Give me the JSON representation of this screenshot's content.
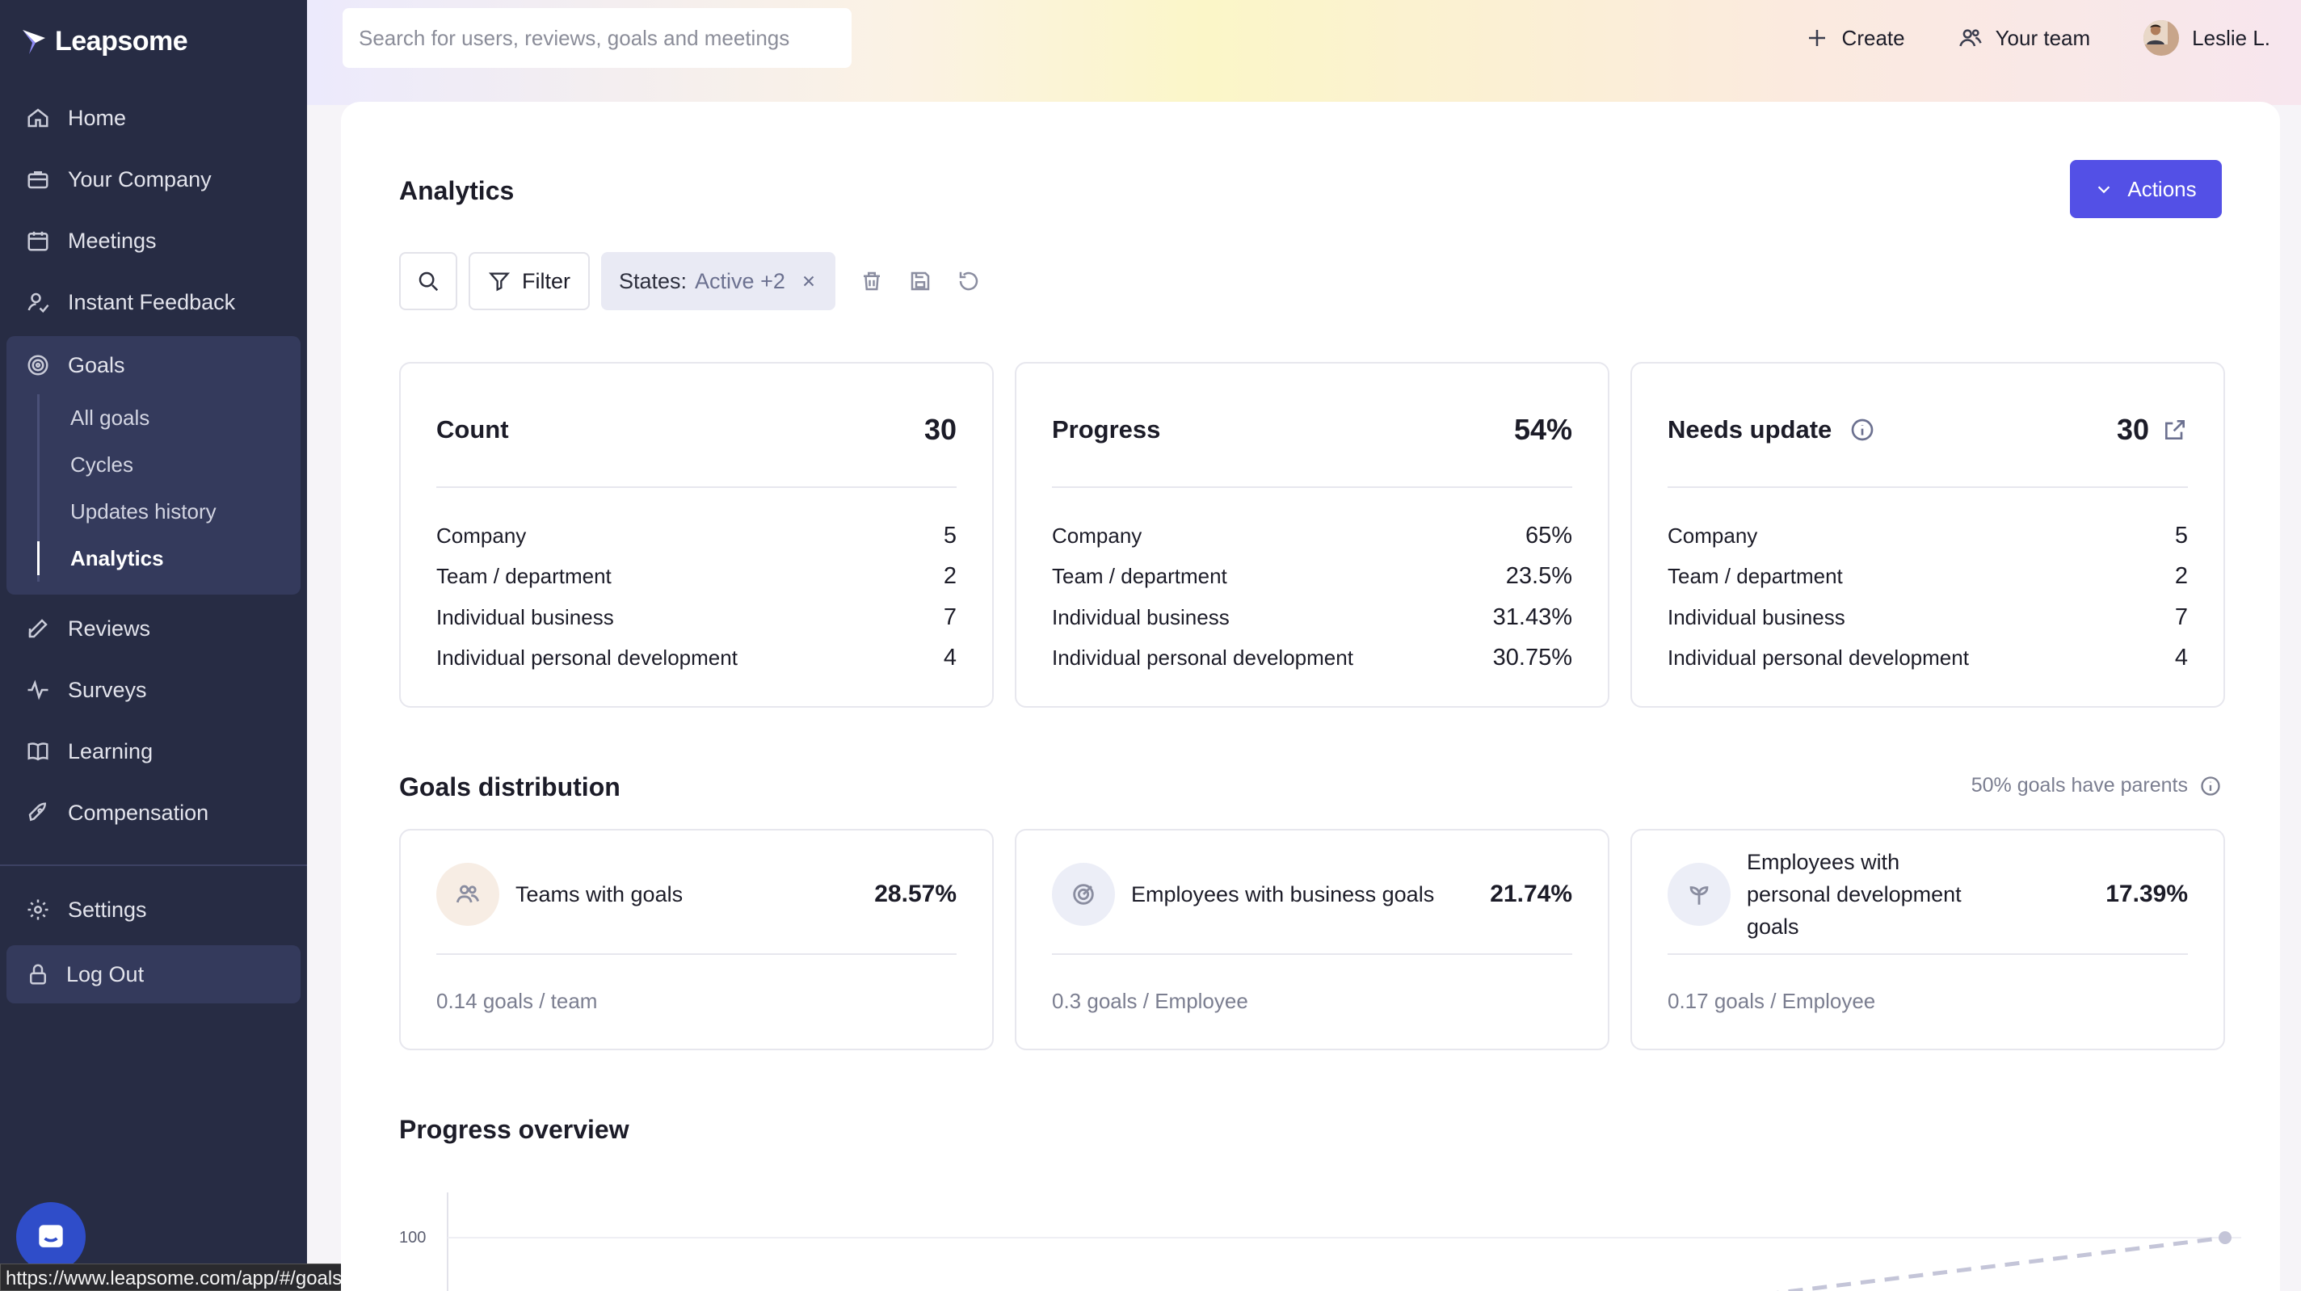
{
  "app": {
    "name": "Leapsome",
    "status_url": "https://www.leapsome.com/app/#/goals/stats/all"
  },
  "sidebar": {
    "items": [
      {
        "label": "Home",
        "icon": "home-icon"
      },
      {
        "label": "Your Company",
        "icon": "briefcase-icon"
      },
      {
        "label": "Meetings",
        "icon": "calendar-icon"
      },
      {
        "label": "Instant Feedback",
        "icon": "feedback-icon"
      }
    ],
    "goals": {
      "label": "Goals",
      "icon": "target-icon",
      "children": [
        "All goals",
        "Cycles",
        "Updates history",
        "Analytics"
      ],
      "active_child": "Analytics"
    },
    "items_after": [
      {
        "label": "Reviews",
        "icon": "edit-icon"
      },
      {
        "label": "Surveys",
        "icon": "pulse-icon"
      },
      {
        "label": "Learning",
        "icon": "book-icon"
      },
      {
        "label": "Compensation",
        "icon": "rocket-icon"
      }
    ],
    "settings": "Settings",
    "logout": "Log Out"
  },
  "topbar": {
    "search_placeholder": "Search for users, reviews, goals and meetings",
    "create": "Create",
    "your_team": "Your team",
    "user_name": "Leslie L."
  },
  "page": {
    "title": "Analytics",
    "actions_label": "Actions",
    "filter_label": "Filter",
    "chip_key": "States:",
    "chip_value": "Active +2"
  },
  "stats": [
    {
      "title": "Count",
      "total": "30",
      "rows": [
        {
          "label": "Company",
          "value": "5"
        },
        {
          "label": "Team / department",
          "value": "2"
        },
        {
          "label": "Individual business",
          "value": "7"
        },
        {
          "label": "Individual personal development",
          "value": "4"
        }
      ]
    },
    {
      "title": "Progress",
      "total": "54%",
      "rows": [
        {
          "label": "Company",
          "value": "65%"
        },
        {
          "label": "Team / department",
          "value": "23.5%"
        },
        {
          "label": "Individual business",
          "value": "31.43%"
        },
        {
          "label": "Individual personal development",
          "value": "30.75%"
        }
      ]
    },
    {
      "title": "Needs update",
      "total": "30",
      "rows": [
        {
          "label": "Company",
          "value": "5"
        },
        {
          "label": "Team / department",
          "value": "2"
        },
        {
          "label": "Individual business",
          "value": "7"
        },
        {
          "label": "Individual personal development",
          "value": "4"
        }
      ]
    }
  ],
  "distribution": {
    "title": "Goals distribution",
    "parents_note": "50% goals have parents",
    "cards": [
      {
        "label": "Teams with goals",
        "pct": "28.57%",
        "foot": "0.14 goals / team",
        "icon": "people-icon",
        "color": "#f7ede4"
      },
      {
        "label": "Employees with business goals",
        "pct": "21.74%",
        "foot": "0.3 goals / Employee",
        "icon": "target-icon",
        "color": "#eceef7"
      },
      {
        "label": "Employees with personal development goals",
        "pct": "17.39%",
        "foot": "0.17 goals / Employee",
        "icon": "sprout-icon",
        "color": "#eceef7"
      }
    ]
  },
  "progress_overview": {
    "title": "Progress overview",
    "y_tick": "100"
  }
}
